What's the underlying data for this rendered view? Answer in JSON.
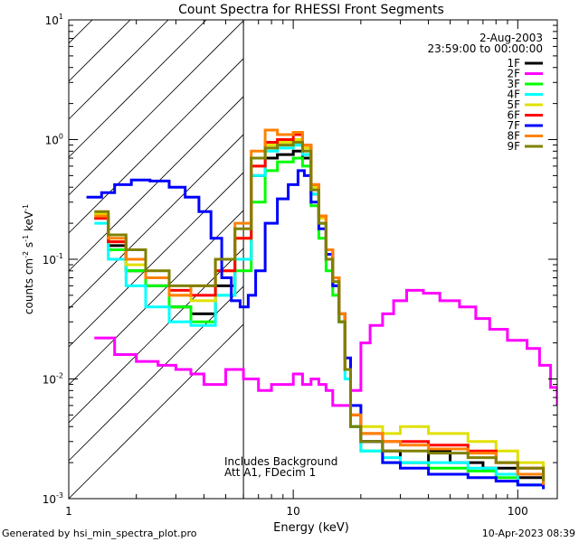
{
  "chart_data": {
    "type": "line",
    "title": "Count Spectra for RHESSI Front Segments",
    "xlabel": "Energy (keV)",
    "ylabel_base": "counts cm",
    "ylabel_exp1": "-2",
    "ylabel_mid": " s",
    "ylabel_exp2": "-1",
    "ylabel_end": " keV",
    "ylabel_exp3": "-1",
    "x_scale": "log",
    "y_scale": "log",
    "xlim": [
      1,
      150
    ],
    "ylim": [
      0.001,
      10
    ],
    "x_ticks": [
      {
        "value": 1,
        "label": "1"
      },
      {
        "value": 10,
        "label": "10"
      },
      {
        "value": 100,
        "label": "100"
      }
    ],
    "y_ticks": [
      {
        "value": 0.001,
        "base": "10",
        "exp": "-3"
      },
      {
        "value": 0.01,
        "base": "10",
        "exp": "-2"
      },
      {
        "value": 0.1,
        "base": "10",
        "exp": "-1"
      },
      {
        "value": 1,
        "base": "10",
        "exp": "0"
      },
      {
        "value": 10,
        "base": "10",
        "exp": "1"
      }
    ],
    "shaded_region_max_keV": 6,
    "date": "2-Aug-2003",
    "time_range": "23:59:00 to 00:00:00",
    "annotations": [
      "Includes Background",
      "Att A1, FDecim 1"
    ],
    "series": [
      {
        "name": "1F",
        "color": "#000000",
        "points": [
          [
            1.3,
            0.22
          ],
          [
            1.5,
            0.13
          ],
          [
            1.8,
            0.08
          ],
          [
            2.2,
            0.06
          ],
          [
            2.8,
            0.04
          ],
          [
            3.5,
            0.035
          ],
          [
            4.5,
            0.06
          ],
          [
            5.5,
            0.1
          ],
          [
            6.5,
            0.5
          ],
          [
            7.5,
            0.7
          ],
          [
            8.5,
            0.75
          ],
          [
            10,
            0.8
          ],
          [
            11,
            0.7
          ],
          [
            12,
            0.35
          ],
          [
            13,
            0.2
          ],
          [
            14,
            0.1
          ],
          [
            15,
            0.06
          ],
          [
            16,
            0.03
          ],
          [
            17,
            0.012
          ],
          [
            18,
            0.004
          ],
          [
            20,
            0.003
          ],
          [
            25,
            0.0025
          ],
          [
            30,
            0.002
          ],
          [
            40,
            0.0025
          ],
          [
            50,
            0.002
          ],
          [
            70,
            0.0018
          ],
          [
            100,
            0.0015
          ],
          [
            130,
            0.0013
          ]
        ]
      },
      {
        "name": "2F",
        "color": "#ff00ff",
        "points": [
          [
            1.3,
            0.022
          ],
          [
            1.6,
            0.016
          ],
          [
            2,
            0.014
          ],
          [
            2.5,
            0.013
          ],
          [
            3,
            0.012
          ],
          [
            3.5,
            0.011
          ],
          [
            4,
            0.009
          ],
          [
            5,
            0.012
          ],
          [
            6,
            0.01
          ],
          [
            7,
            0.008
          ],
          [
            8,
            0.009
          ],
          [
            9,
            0.009
          ],
          [
            10,
            0.011
          ],
          [
            11,
            0.009
          ],
          [
            12,
            0.01
          ],
          [
            13,
            0.009
          ],
          [
            14,
            0.008
          ],
          [
            15,
            0.006
          ],
          [
            16,
            0.006
          ],
          [
            17,
            0.006
          ],
          [
            18,
            0.008
          ],
          [
            20,
            0.02
          ],
          [
            22,
            0.028
          ],
          [
            25,
            0.035
          ],
          [
            28,
            0.045
          ],
          [
            32,
            0.055
          ],
          [
            38,
            0.052
          ],
          [
            45,
            0.045
          ],
          [
            55,
            0.04
          ],
          [
            65,
            0.032
          ],
          [
            75,
            0.026
          ],
          [
            90,
            0.021
          ],
          [
            110,
            0.018
          ],
          [
            125,
            0.013
          ],
          [
            140,
            0.0085
          ],
          [
            150,
            0.006
          ]
        ]
      },
      {
        "name": "3F",
        "color": "#00ff00",
        "points": [
          [
            1.3,
            0.24
          ],
          [
            1.5,
            0.12
          ],
          [
            1.8,
            0.08
          ],
          [
            2.2,
            0.06
          ],
          [
            2.8,
            0.04
          ],
          [
            3.5,
            0.03
          ],
          [
            4.5,
            0.05
          ],
          [
            5.5,
            0.08
          ],
          [
            6.5,
            0.3
          ],
          [
            7.5,
            0.55
          ],
          [
            8.5,
            0.65
          ],
          [
            10,
            0.7
          ],
          [
            11,
            0.6
          ],
          [
            12,
            0.28
          ],
          [
            13,
            0.15
          ],
          [
            14,
            0.08
          ],
          [
            15,
            0.05
          ],
          [
            16,
            0.03
          ],
          [
            17,
            0.012
          ],
          [
            18,
            0.004
          ],
          [
            20,
            0.0025
          ],
          [
            25,
            0.002
          ],
          [
            30,
            0.002
          ],
          [
            40,
            0.0018
          ],
          [
            60,
            0.0017
          ],
          [
            80,
            0.0015
          ],
          [
            100,
            0.0013
          ],
          [
            130,
            0.0012
          ]
        ]
      },
      {
        "name": "4F",
        "color": "#00ffff",
        "points": [
          [
            1.3,
            0.2
          ],
          [
            1.5,
            0.1
          ],
          [
            1.8,
            0.06
          ],
          [
            2.2,
            0.04
          ],
          [
            2.8,
            0.03
          ],
          [
            3.5,
            0.028
          ],
          [
            4.5,
            0.05
          ],
          [
            5.5,
            0.1
          ],
          [
            6.5,
            0.5
          ],
          [
            7.5,
            0.8
          ],
          [
            8.5,
            0.85
          ],
          [
            10,
            0.9
          ],
          [
            11,
            0.75
          ],
          [
            12,
            0.35
          ],
          [
            13,
            0.2
          ],
          [
            14,
            0.1
          ],
          [
            15,
            0.06
          ],
          [
            16,
            0.03
          ],
          [
            17,
            0.01
          ],
          [
            18,
            0.004
          ],
          [
            20,
            0.0025
          ],
          [
            25,
            0.0022
          ],
          [
            30,
            0.002
          ],
          [
            40,
            0.002
          ],
          [
            60,
            0.0018
          ],
          [
            80,
            0.0016
          ],
          [
            100,
            0.0013
          ],
          [
            130,
            0.0012
          ]
        ]
      },
      {
        "name": "5F",
        "color": "#e0e000",
        "points": [
          [
            1.3,
            0.24
          ],
          [
            1.5,
            0.14
          ],
          [
            1.8,
            0.09
          ],
          [
            2.2,
            0.07
          ],
          [
            2.8,
            0.05
          ],
          [
            3.5,
            0.045
          ],
          [
            4.5,
            0.08
          ],
          [
            5.5,
            0.15
          ],
          [
            6.5,
            0.6
          ],
          [
            7.5,
            0.9
          ],
          [
            8.5,
            0.95
          ],
          [
            10,
            1.0
          ],
          [
            11,
            0.85
          ],
          [
            12,
            0.4
          ],
          [
            13,
            0.22
          ],
          [
            14,
            0.11
          ],
          [
            15,
            0.07
          ],
          [
            16,
            0.035
          ],
          [
            17,
            0.012
          ],
          [
            18,
            0.005
          ],
          [
            20,
            0.004
          ],
          [
            25,
            0.0035
          ],
          [
            30,
            0.004
          ],
          [
            40,
            0.0035
          ],
          [
            60,
            0.003
          ],
          [
            80,
            0.0025
          ],
          [
            100,
            0.002
          ],
          [
            130,
            0.0015
          ]
        ]
      },
      {
        "name": "6F",
        "color": "#ff0000",
        "points": [
          [
            1.3,
            0.22
          ],
          [
            1.5,
            0.14
          ],
          [
            1.8,
            0.1
          ],
          [
            2.2,
            0.07
          ],
          [
            2.8,
            0.055
          ],
          [
            3.5,
            0.05
          ],
          [
            4.5,
            0.08
          ],
          [
            5.5,
            0.15
          ],
          [
            6.5,
            0.6
          ],
          [
            7.5,
            0.95
          ],
          [
            8.5,
            1.0
          ],
          [
            10,
            1.1
          ],
          [
            11,
            0.9
          ],
          [
            12,
            0.42
          ],
          [
            13,
            0.23
          ],
          [
            14,
            0.12
          ],
          [
            15,
            0.07
          ],
          [
            16,
            0.035
          ],
          [
            17,
            0.012
          ],
          [
            18,
            0.005
          ],
          [
            20,
            0.0035
          ],
          [
            25,
            0.003
          ],
          [
            30,
            0.003
          ],
          [
            40,
            0.0028
          ],
          [
            60,
            0.0025
          ],
          [
            80,
            0.002
          ],
          [
            100,
            0.0018
          ],
          [
            130,
            0.0015
          ]
        ]
      },
      {
        "name": "7F",
        "color": "#0000ff",
        "points": [
          [
            1.2,
            0.33
          ],
          [
            1.4,
            0.36
          ],
          [
            1.6,
            0.42
          ],
          [
            1.9,
            0.46
          ],
          [
            2.3,
            0.45
          ],
          [
            2.8,
            0.4
          ],
          [
            3.3,
            0.33
          ],
          [
            3.8,
            0.25
          ],
          [
            4.3,
            0.15
          ],
          [
            4.8,
            0.07
          ],
          [
            5.3,
            0.045
          ],
          [
            5.8,
            0.04
          ],
          [
            6.3,
            0.05
          ],
          [
            6.8,
            0.08
          ],
          [
            7.5,
            0.2
          ],
          [
            8.5,
            0.32
          ],
          [
            9.5,
            0.42
          ],
          [
            10.5,
            0.55
          ],
          [
            11.2,
            0.5
          ],
          [
            12,
            0.3
          ],
          [
            13,
            0.18
          ],
          [
            14,
            0.11
          ],
          [
            15,
            0.06
          ],
          [
            16,
            0.035
          ],
          [
            17,
            0.015
          ],
          [
            18,
            0.006
          ],
          [
            20,
            0.003
          ],
          [
            25,
            0.002
          ],
          [
            30,
            0.0018
          ],
          [
            40,
            0.0016
          ],
          [
            60,
            0.0015
          ],
          [
            80,
            0.0014
          ],
          [
            100,
            0.0013
          ],
          [
            130,
            0.0012
          ]
        ]
      },
      {
        "name": "8F",
        "color": "#ff8000",
        "points": [
          [
            1.3,
            0.23
          ],
          [
            1.5,
            0.15
          ],
          [
            1.8,
            0.1
          ],
          [
            2.2,
            0.07
          ],
          [
            2.8,
            0.05
          ],
          [
            3.5,
            0.06
          ],
          [
            4.5,
            0.1
          ],
          [
            5.5,
            0.2
          ],
          [
            6.5,
            0.8
          ],
          [
            7.5,
            1.2
          ],
          [
            8.5,
            1.1
          ],
          [
            10,
            1.15
          ],
          [
            11,
            0.9
          ],
          [
            12,
            0.42
          ],
          [
            13,
            0.23
          ],
          [
            14,
            0.12
          ],
          [
            15,
            0.07
          ],
          [
            16,
            0.035
          ],
          [
            17,
            0.012
          ],
          [
            18,
            0.005
          ],
          [
            20,
            0.0035
          ],
          [
            25,
            0.003
          ],
          [
            30,
            0.0028
          ],
          [
            40,
            0.0026
          ],
          [
            60,
            0.0024
          ],
          [
            80,
            0.002
          ],
          [
            100,
            0.0016
          ],
          [
            130,
            0.0013
          ]
        ]
      },
      {
        "name": "9F",
        "color": "#808000",
        "points": [
          [
            1.3,
            0.25
          ],
          [
            1.5,
            0.16
          ],
          [
            1.8,
            0.12
          ],
          [
            2.2,
            0.08
          ],
          [
            2.8,
            0.06
          ],
          [
            3.5,
            0.06
          ],
          [
            4.5,
            0.1
          ],
          [
            5.5,
            0.18
          ],
          [
            6.5,
            0.7
          ],
          [
            7.5,
            0.85
          ],
          [
            8.5,
            0.9
          ],
          [
            10,
            0.95
          ],
          [
            11,
            0.8
          ],
          [
            12,
            0.38
          ],
          [
            13,
            0.2
          ],
          [
            14,
            0.1
          ],
          [
            15,
            0.065
          ],
          [
            16,
            0.03
          ],
          [
            17,
            0.012
          ],
          [
            18,
            0.004
          ],
          [
            20,
            0.003
          ],
          [
            25,
            0.0025
          ],
          [
            30,
            0.0025
          ],
          [
            40,
            0.0024
          ],
          [
            60,
            0.0022
          ],
          [
            80,
            0.002
          ],
          [
            100,
            0.0018
          ],
          [
            130,
            0.0014
          ]
        ]
      }
    ]
  },
  "footer": {
    "left": "Generated by hsi_min_spectra_plot.pro",
    "right": "10-Apr-2023 08:39"
  }
}
